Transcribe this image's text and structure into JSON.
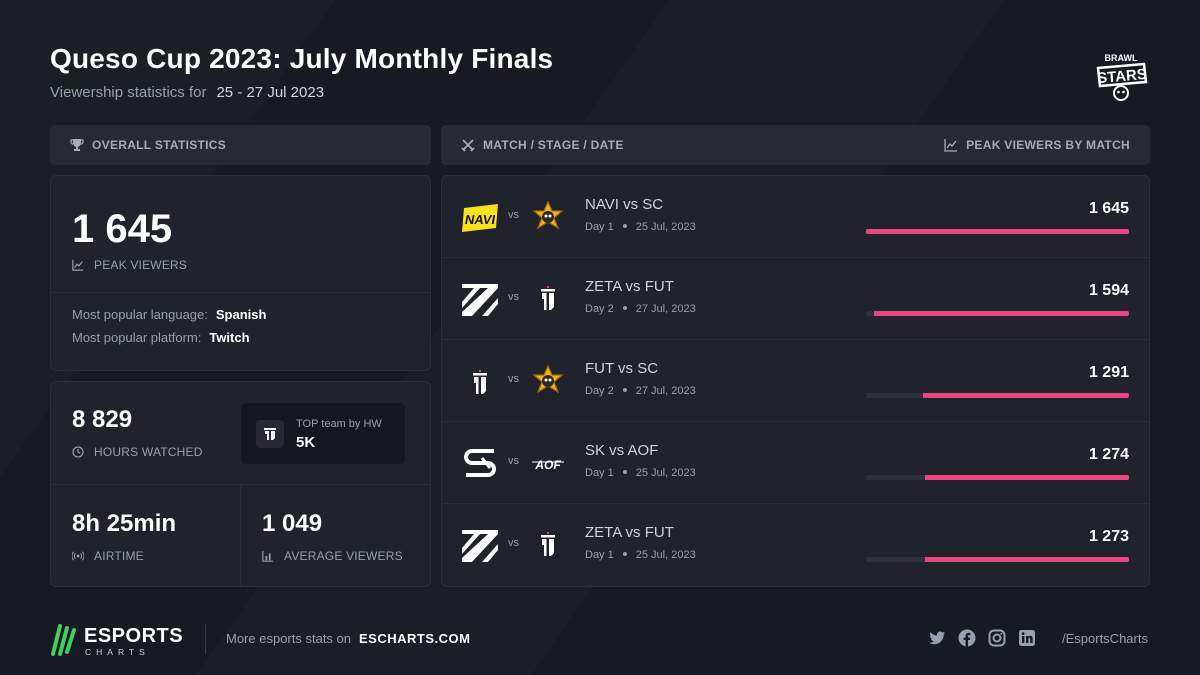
{
  "header": {
    "title": "Queso Cup 2023: July Monthly Finals",
    "subtitle_label": "Viewership statistics for",
    "dates": "25 - 27 Jul 2023",
    "game_logo": "brawl-stars-logo",
    "game_logo_text_1": "BRAWL",
    "game_logo_text_2": "STARS"
  },
  "overall": {
    "header_label": "OVERALL STATISTICS",
    "peak_viewers": "1 645",
    "peak_viewers_label": "PEAK VIEWERS",
    "language_label": "Most popular language:",
    "language_value": "Spanish",
    "platform_label": "Most popular platform:",
    "platform_value": "Twitch",
    "hours_watched": "8 829",
    "hours_watched_label": "HOURS WATCHED",
    "top_team_label": "TOP team by HW",
    "top_team_value": "5K",
    "airtime": "8h 25min",
    "airtime_label": "AIRTIME",
    "average_viewers": "1 049",
    "average_viewers_label": "AVERAGE VIEWERS"
  },
  "matches_header": {
    "left_label": "MATCH / STAGE / DATE",
    "right_label": "PEAK VIEWERS BY MATCH"
  },
  "colors": {
    "accent": "#e8477e",
    "background": "#181a23",
    "panel": "#20222c",
    "brand_green": "#3fd15c"
  },
  "chart_data": {
    "type": "bar",
    "title": "PEAK VIEWERS BY MATCH",
    "categories": [
      "NAVI vs SC",
      "ZETA vs FUT",
      "FUT vs SC",
      "SK vs AOF",
      "ZETA vs FUT"
    ],
    "values": [
      1645,
      1594,
      1291,
      1274,
      1273
    ],
    "value_labels": [
      "1 645",
      "1 594",
      "1 291",
      "1 274",
      "1 273"
    ],
    "stages": [
      "Day 1",
      "Day 2",
      "Day 2",
      "Day 1",
      "Day 1"
    ],
    "dates": [
      "25 Jul, 2023",
      "27 Jul, 2023",
      "27 Jul, 2023",
      "25 Jul, 2023",
      "25 Jul, 2023"
    ],
    "team_logos": [
      [
        "navi-logo",
        "sc-logo"
      ],
      [
        "zeta-logo",
        "fut-logo"
      ],
      [
        "fut-logo",
        "sc-logo"
      ],
      [
        "sk-logo",
        "aof-logo"
      ],
      [
        "zeta-logo",
        "fut-logo"
      ]
    ],
    "ylim": [
      0,
      1645
    ]
  },
  "vs_label": "vs",
  "footer": {
    "brand_top": "ESPORTS",
    "brand_bottom": "CHARTS",
    "more_label": "More esports stats on",
    "site": "ESCHARTS.COM",
    "handle": "/EsportsCharts",
    "socials": [
      "twitter-icon",
      "facebook-icon",
      "instagram-icon",
      "linkedin-icon"
    ]
  }
}
